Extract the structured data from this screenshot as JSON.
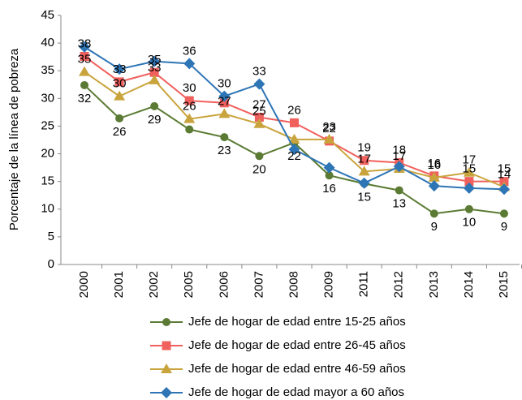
{
  "chart_data": {
    "type": "line",
    "y_label": "Porcentaje de la línea de pobreza",
    "categories": [
      "2000",
      "2001",
      "2002",
      "2005",
      "2006",
      "2007",
      "2008",
      "2009",
      "2011",
      "2012",
      "2013",
      "2014",
      "2015"
    ],
    "ylim": [
      0,
      45
    ],
    "yticks": [
      0,
      5,
      10,
      15,
      20,
      25,
      30,
      35,
      40,
      45
    ],
    "series": [
      {
        "name": "Jefe de hogar de edad entre 15-25 años",
        "color": "#5b7b34",
        "marker": "circle",
        "values": [
          32.4,
          26.4,
          28.6,
          24.4,
          23,
          19.6,
          22,
          16.1,
          14.6,
          13.4,
          9.2,
          10,
          9.2
        ],
        "value_labels": [
          "32",
          "26",
          "29",
          null,
          "23",
          "20",
          "22",
          "16",
          "15",
          "13",
          "9",
          "10",
          "9"
        ]
      },
      {
        "name": "Jefe de hogar de edad entre 26-45 años",
        "color": "#f0605d",
        "marker": "square",
        "values": [
          37.6,
          33,
          34.7,
          29.6,
          29.2,
          26.6,
          25.6,
          22.3,
          18.8,
          18.4,
          16,
          15,
          15
        ],
        "value_labels": [
          "38",
          "33",
          "35",
          "30",
          null,
          "27",
          "26",
          "22",
          "19",
          "18",
          "16",
          "15",
          "15"
        ]
      },
      {
        "name": "Jefe de hogar de edad entre 46-59 años",
        "color": "#c9a43d",
        "marker": "triangle",
        "values": [
          34.8,
          30.4,
          33.3,
          26.3,
          27.2,
          25.4,
          22.6,
          22.6,
          16.8,
          17.3,
          15.7,
          16.6,
          14
        ],
        "value_labels": [
          "35",
          "30",
          "33",
          "26",
          "27",
          "25",
          null,
          "23",
          "17",
          "17",
          "16",
          "17",
          "14"
        ]
      },
      {
        "name": "Jefe de hogar de edad mayor a 60 años",
        "color": "#2e75b6",
        "marker": "diamond",
        "values": [
          39.3,
          35.3,
          36.7,
          36.3,
          30.4,
          32.6,
          20.8,
          17.5,
          14.7,
          17.7,
          14.2,
          13.8,
          13.6
        ],
        "value_labels": [
          null,
          null,
          null,
          "36",
          "30",
          "33",
          null,
          null,
          null,
          null,
          null,
          null,
          null
        ]
      }
    ]
  }
}
